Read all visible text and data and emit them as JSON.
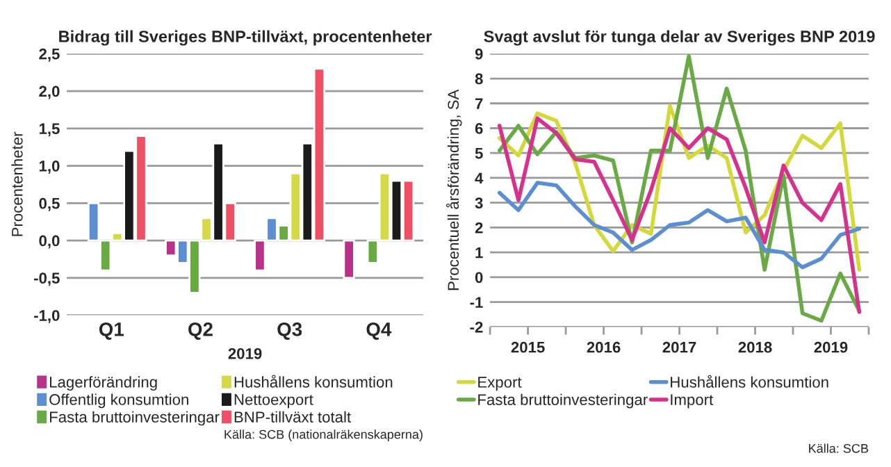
{
  "chart_data": [
    {
      "type": "bar",
      "title": "Bidrag till Sveriges BNP-tillväxt, procentenheter",
      "xlabel": "2019",
      "ylabel": "Procentenheter",
      "categories": [
        "Q1",
        "Q2",
        "Q3",
        "Q4"
      ],
      "series": [
        {
          "name": "Lagerförändring",
          "color": "#b8328a",
          "values": [
            null,
            -0.2,
            -0.4,
            -0.5
          ]
        },
        {
          "name": "Offentlig konsumtion",
          "color": "#5b8fd1",
          "values": [
            0.5,
            -0.3,
            0.3,
            null
          ]
        },
        {
          "name": "Fasta bruttoinvesteringar",
          "color": "#6aaa45",
          "values": [
            -0.4,
            -0.7,
            0.2,
            -0.3
          ]
        },
        {
          "name": "Hushållens konsumtion",
          "color": "#d4da45",
          "values": [
            0.1,
            0.3,
            0.9,
            0.9
          ]
        },
        {
          "name": "Nettoexport",
          "color": "#1a1a1a",
          "values": [
            1.2,
            1.3,
            1.3,
            0.8
          ]
        },
        {
          "name": "BNP-tillväxt totalt",
          "color": "#f04e64",
          "values": [
            1.4,
            0.5,
            2.3,
            0.8
          ]
        }
      ],
      "ylim": [
        -1.0,
        2.5
      ],
      "yticks": [
        {
          "value": -1.0,
          "label": "-1,0"
        },
        {
          "value": -0.5,
          "label": "-0,5"
        },
        {
          "value": 0.0,
          "label": "0,0"
        },
        {
          "value": 0.5,
          "label": "0,5"
        },
        {
          "value": 1.0,
          "label": "1,0"
        },
        {
          "value": 1.5,
          "label": "1,5"
        },
        {
          "value": 2.0,
          "label": "2,0"
        },
        {
          "value": 2.5,
          "label": "2,5"
        }
      ],
      "grid": "y",
      "legend": "bottom",
      "annotations": [
        "Källa: SCB (nationalräkenskaperna)"
      ]
    },
    {
      "type": "line",
      "title": "Svagt avslut för tunga delar av Sveriges BNP 2019",
      "ylabel": "Procentuell årsförändring, SA",
      "x": [
        2015.125,
        2015.375,
        2015.625,
        2015.875,
        2016.125,
        2016.375,
        2016.625,
        2016.875,
        2017.125,
        2017.375,
        2017.625,
        2017.875,
        2018.125,
        2018.375,
        2018.625,
        2018.875,
        2019.125,
        2019.375,
        2019.625,
        2019.875
      ],
      "series": [
        {
          "name": "Export",
          "color": "#d4d93a",
          "values": [
            5.6,
            4.9,
            6.6,
            6.3,
            4.6,
            2.1,
            1.05,
            2.1,
            1.75,
            6.9,
            4.8,
            5.3,
            4.8,
            1.8,
            2.5,
            4.3,
            5.7,
            5.2,
            6.2,
            0.3
          ]
        },
        {
          "name": "Fasta bruttoinvesteringar",
          "color": "#6aaa45",
          "values": [
            5.1,
            6.1,
            4.95,
            5.85,
            4.8,
            4.9,
            4.7,
            1.4,
            5.1,
            5.1,
            8.9,
            4.8,
            7.6,
            5.1,
            0.3,
            4.1,
            -1.45,
            -1.75,
            0.15,
            -1.35
          ]
        },
        {
          "name": "Hushållens konsumtion",
          "color": "#5b8fd1",
          "values": [
            3.4,
            2.7,
            3.8,
            3.7,
            2.85,
            2.1,
            1.8,
            1.1,
            1.5,
            2.1,
            2.2,
            2.7,
            2.25,
            2.4,
            1.1,
            1.0,
            0.4,
            0.75,
            1.7,
            1.95
          ]
        },
        {
          "name": "Import",
          "color": "#d6318c",
          "values": [
            6.1,
            3.1,
            6.4,
            5.8,
            4.75,
            4.65,
            3.1,
            1.5,
            3.5,
            6.0,
            5.2,
            6.0,
            5.55,
            3.6,
            1.4,
            4.5,
            3.0,
            2.3,
            3.75,
            -1.4
          ]
        }
      ],
      "xlim": [
        2015,
        2020
      ],
      "xticks": [
        {
          "value": 2015,
          "label": null
        },
        {
          "value": 2015.5,
          "label": "2015"
        },
        {
          "value": 2016,
          "label": null
        },
        {
          "value": 2016.5,
          "label": "2016"
        },
        {
          "value": 2017,
          "label": null
        },
        {
          "value": 2017.5,
          "label": "2017"
        },
        {
          "value": 2018,
          "label": null
        },
        {
          "value": 2018.5,
          "label": "2018"
        },
        {
          "value": 2019,
          "label": null
        },
        {
          "value": 2019.5,
          "label": "2019"
        },
        {
          "value": 2020,
          "label": null
        }
      ],
      "ylim": [
        -2,
        9
      ],
      "yticks": [
        -2,
        -1,
        0,
        1,
        2,
        3,
        4,
        5,
        6,
        7,
        8,
        9
      ],
      "grid": "y",
      "legend": "bottom",
      "line_style": "solid",
      "annotations": [
        "Källa: SCB"
      ]
    }
  ]
}
